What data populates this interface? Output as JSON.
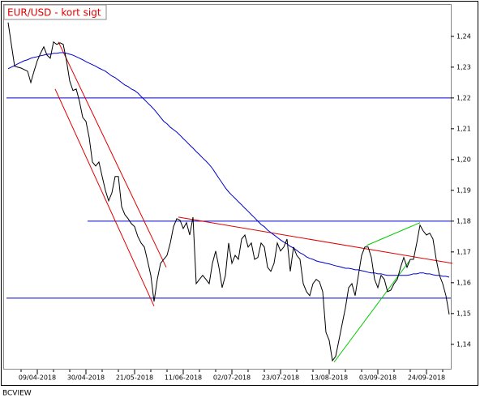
{
  "chart_data": {
    "type": "line",
    "title": "EUR/USD - kort sigt",
    "footer": "BCVIEW",
    "categories": [
      null,
      null,
      null,
      null,
      null,
      null,
      null,
      null,
      null,
      "09/04-2018",
      null,
      null,
      null,
      null,
      null,
      null,
      null,
      null,
      null,
      null,
      null,
      null,
      null,
      null,
      "30/04-2018",
      null,
      null,
      null,
      null,
      null,
      null,
      null,
      null,
      null,
      null,
      null,
      null,
      null,
      null,
      "21/05-2018",
      null,
      null,
      null,
      null,
      null,
      null,
      null,
      null,
      null,
      null,
      null,
      null,
      null,
      null,
      "11/06-2018",
      null,
      null,
      null,
      null,
      null,
      null,
      null,
      null,
      null,
      null,
      null,
      null,
      null,
      null,
      "02/07-2018",
      null,
      null,
      null,
      null,
      null,
      null,
      null,
      null,
      null,
      null,
      null,
      null,
      null,
      null,
      "23/07-2018",
      null,
      null,
      null,
      null,
      null,
      null,
      null,
      null,
      null,
      null,
      null,
      null,
      null,
      null,
      "13/08-2018",
      null,
      null,
      null,
      null,
      null,
      null,
      null,
      null,
      null,
      null,
      null,
      null,
      null,
      null,
      "03/09-2018",
      null,
      null,
      null,
      null,
      null,
      null,
      null,
      null,
      null,
      null,
      null,
      null,
      null,
      null,
      "24/09-2018",
      null,
      null,
      null,
      null,
      null,
      null,
      null
    ],
    "series": [
      {
        "color": "#000000",
        "values": [
          1.2445,
          1.2374,
          1.2303,
          1.23,
          1.2297,
          1.2292,
          1.2287,
          1.225,
          1.2287,
          1.2321,
          1.2345,
          1.2366,
          1.2339,
          1.2329,
          1.2382,
          1.2374,
          1.2379,
          1.2374,
          1.2321,
          1.2255,
          1.2224,
          1.2229,
          1.2189,
          1.2137,
          1.2124,
          1.2071,
          1.1992,
          1.1979,
          1.1992,
          1.1945,
          1.19,
          1.1866,
          1.1892,
          1.1945,
          1.1945,
          1.1847,
          1.1821,
          1.1808,
          1.1792,
          1.1782,
          1.175,
          1.1729,
          1.1716,
          1.1671,
          1.1624,
          1.1539,
          1.1611,
          1.1663,
          1.1676,
          1.1689,
          1.1729,
          1.1782,
          1.1808,
          1.1803,
          1.1776,
          1.1795,
          1.1755,
          1.1813,
          1.1597,
          1.1611,
          1.1624,
          1.1611,
          1.1597,
          1.1663,
          1.1703,
          1.165,
          1.1584,
          1.1624,
          1.1729,
          1.1663,
          1.1689,
          1.1676,
          1.1742,
          1.1755,
          1.1716,
          1.1729,
          1.1676,
          1.1682,
          1.1729,
          1.1716,
          1.165,
          1.1637,
          1.1663,
          1.1729,
          1.1703,
          1.1716,
          1.1742,
          1.1637,
          1.1716,
          1.1689,
          1.1676,
          1.1597,
          1.1571,
          1.1558,
          1.1597,
          1.1611,
          1.1603,
          1.1571,
          1.1439,
          1.1413,
          1.1347,
          1.1361,
          1.1413,
          1.1466,
          1.1518,
          1.1584,
          1.1597,
          1.1558,
          1.1624,
          1.1689,
          1.1716,
          1.1716,
          1.1682,
          1.1611,
          1.1584,
          1.1624,
          1.1611,
          1.1571,
          1.1576,
          1.1597,
          1.1611,
          1.165,
          1.1682,
          1.165,
          1.1676,
          1.1676,
          1.1729,
          1.1787,
          1.1768,
          1.1755,
          1.1761,
          1.1742,
          1.1676,
          1.1624,
          1.1597,
          1.1558,
          1.1497
        ]
      },
      {
        "color": "#0000cc",
        "values": [
          1.2295,
          1.23,
          1.2305,
          1.2311,
          1.2316,
          1.2321,
          1.2324,
          1.2329,
          1.2332,
          1.2334,
          1.2337,
          1.2339,
          1.2342,
          1.2342,
          1.2345,
          1.2345,
          1.2347,
          1.2347,
          1.2345,
          1.2342,
          1.2339,
          1.2334,
          1.2329,
          1.2324,
          1.2318,
          1.2313,
          1.2308,
          1.2303,
          1.2297,
          1.2292,
          1.2287,
          1.2279,
          1.2271,
          1.2266,
          1.2258,
          1.225,
          1.2242,
          1.2237,
          1.2229,
          1.2224,
          1.2216,
          1.2205,
          1.2195,
          1.2184,
          1.2174,
          1.2163,
          1.215,
          1.2137,
          1.2124,
          1.2116,
          1.2105,
          1.2097,
          1.2089,
          1.2079,
          1.2068,
          1.2058,
          1.2047,
          1.2037,
          1.2026,
          1.2016,
          1.2005,
          1.1995,
          1.1984,
          1.1971,
          1.1955,
          1.1939,
          1.1924,
          1.1908,
          1.1895,
          1.1884,
          1.1874,
          1.1863,
          1.1853,
          1.1842,
          1.1832,
          1.1821,
          1.1811,
          1.18,
          1.1789,
          1.1782,
          1.1771,
          1.1763,
          1.1755,
          1.1747,
          1.1739,
          1.1732,
          1.1726,
          1.1718,
          1.1713,
          1.1705,
          1.1697,
          1.1692,
          1.1684,
          1.1679,
          1.1676,
          1.1671,
          1.1668,
          1.1666,
          1.1663,
          1.1661,
          1.1658,
          1.1655,
          1.1653,
          1.165,
          1.1647,
          1.1647,
          1.1645,
          1.1642,
          1.1642,
          1.1639,
          1.1637,
          1.1634,
          1.1632,
          1.1632,
          1.1629,
          1.1629,
          1.1626,
          1.1624,
          1.1624,
          1.1624,
          1.1624,
          1.1624,
          1.1624,
          1.1624,
          1.1626,
          1.1629,
          1.1629,
          1.1632,
          1.1632,
          1.1629,
          1.1629,
          1.1626,
          1.1624,
          1.1624,
          1.1621,
          1.1621,
          1.1618
        ]
      }
    ],
    "trend_lines": [
      {
        "color": "#0000cc",
        "x": [
          -0.5,
          136.5
        ],
        "y": [
          1.22,
          1.22
        ]
      },
      {
        "color": "#0000cc",
        "x": [
          24.5,
          136.5
        ],
        "y": [
          1.18,
          1.18
        ]
      },
      {
        "color": "#0000cc",
        "x": [
          -0.5,
          136.5
        ],
        "y": [
          1.155,
          1.155
        ]
      },
      {
        "color": "#e00000",
        "x": [
          14.5,
          45
        ],
        "y": [
          1.2229,
          1.1524
        ]
      },
      {
        "color": "#e00000",
        "x": [
          15.5,
          48.75
        ],
        "y": [
          1.2382,
          1.165
        ]
      },
      {
        "color": "#e00000",
        "x": [
          52.5,
          137
        ],
        "y": [
          1.1813,
          1.1663
        ]
      },
      {
        "color": "#00cc00",
        "x": [
          100.5,
          123.75
        ],
        "y": [
          1.1342,
          1.1671
        ]
      },
      {
        "color": "#00cc00",
        "x": [
          110.5,
          127
        ],
        "y": [
          1.1721,
          1.1795
        ]
      }
    ],
    "xlim": [
      -0.5,
      136.5
    ],
    "ylim": [
      1.1318,
      1.2497
    ],
    "yticks": [
      {
        "value": 1.14,
        "label": "1,14"
      },
      {
        "value": 1.15,
        "label": "1,15"
      },
      {
        "value": 1.16,
        "label": "1,16"
      },
      {
        "value": 1.17,
        "label": "1,17"
      },
      {
        "value": 1.18,
        "label": "1,18"
      },
      {
        "value": 1.19,
        "label": "1,19"
      },
      {
        "value": 1.2,
        "label": "1,20"
      },
      {
        "value": 1.21,
        "label": "1,21"
      },
      {
        "value": 1.22,
        "label": "1,22"
      },
      {
        "value": 1.23,
        "label": "1,23"
      },
      {
        "value": 1.24,
        "label": "1,24"
      }
    ]
  }
}
